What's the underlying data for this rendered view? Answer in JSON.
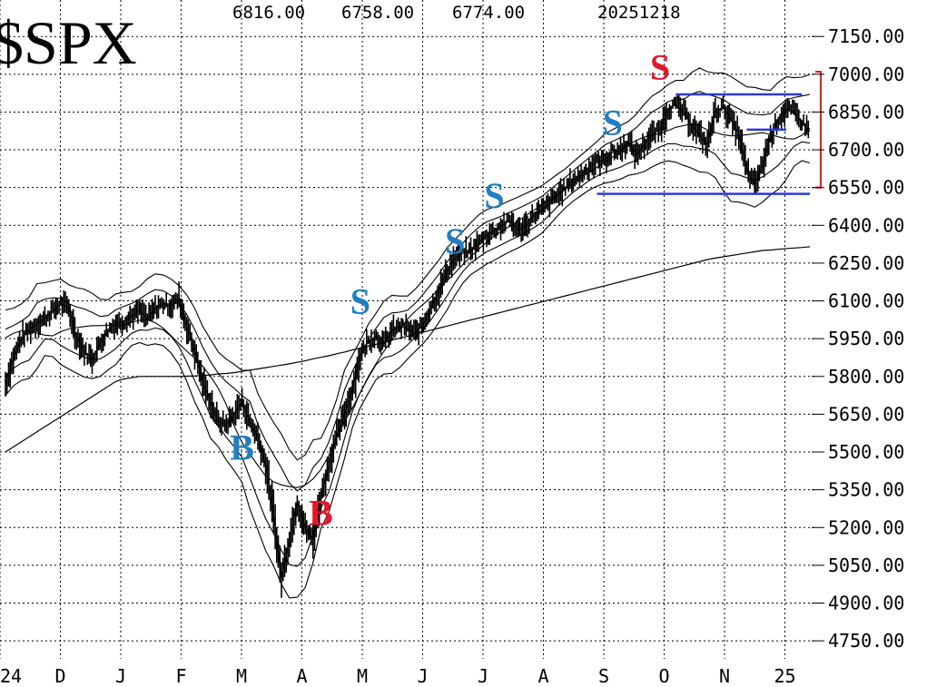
{
  "header": {
    "symbol": "$SPX",
    "high": "6816.00",
    "low": "6758.00",
    "close": "6774.00",
    "date": "20251218"
  },
  "colors": {
    "signal_blue": "#1f7fc0",
    "signal_red": "#e0182b",
    "level_line": "#2b3bd6",
    "bracket": "#d42a2a"
  },
  "chart_data": {
    "type": "line",
    "title": "$SPX",
    "y_tick_labels": [
      "7150.00",
      "7000.00",
      "6850.00",
      "6700.00",
      "6550.00",
      "6400.00",
      "6250.00",
      "6100.00",
      "5950.00",
      "5800.00",
      "5650.00",
      "5500.00",
      "5350.00",
      "5200.00",
      "5050.00",
      "4900.00",
      "4750.00"
    ],
    "ylim": [
      4700,
      7230
    ],
    "x_tick_labels": [
      "24",
      "D",
      "J",
      "F",
      "M",
      "A",
      "M",
      "J",
      "J",
      "A",
      "S",
      "O",
      "N",
      "25"
    ],
    "grid": true,
    "series": [
      {
        "values": [
          5770,
          5870,
          5950,
          5985,
          6010,
          6030,
          6060,
          6090,
          6070,
          5960,
          5900,
          5870,
          5930,
          5985,
          6010,
          6020,
          6040,
          6060,
          6030,
          6070,
          6090,
          6080,
          6110,
          6000,
          5900,
          5780,
          5700,
          5620,
          5610,
          5650,
          5700,
          5620,
          5560,
          5450,
          5250,
          5000,
          5150,
          5300,
          5200,
          5150,
          5320,
          5450,
          5560,
          5650,
          5750,
          5880,
          5940,
          5960,
          5930,
          5980,
          6000,
          5990,
          5970,
          6010,
          6080,
          6140,
          6220,
          6270,
          6290,
          6300,
          6330,
          6360,
          6380,
          6400,
          6420,
          6380,
          6400,
          6440,
          6460,
          6490,
          6520,
          6550,
          6580,
          6600,
          6630,
          6650,
          6660,
          6690,
          6700,
          6730,
          6680,
          6720,
          6760,
          6780,
          6860,
          6880,
          6850,
          6800,
          6760,
          6720,
          6850,
          6870,
          6820,
          6760,
          6620,
          6560,
          6640,
          6750,
          6820,
          6860,
          6850,
          6810,
          6774
        ]
      }
    ],
    "trend_line": [
      5500,
      5520,
      5540,
      5560,
      5580,
      5600,
      5620,
      5640,
      5660,
      5680,
      5700,
      5720,
      5740,
      5760,
      5780,
      5790,
      5795,
      5800,
      5800,
      5800,
      5800,
      5800,
      5800,
      5801,
      5802,
      5804,
      5806,
      5810,
      5812,
      5815,
      5820,
      5825,
      5830,
      5835,
      5840,
      5845,
      5850,
      5856,
      5862,
      5870,
      5876,
      5882,
      5890,
      5897,
      5905,
      5913,
      5920,
      5928,
      5936,
      5944,
      5952,
      5960,
      5968,
      5976,
      5984,
      5992,
      6000,
      6008,
      6016,
      6024,
      6032,
      6040,
      6048,
      6056,
      6064,
      6072,
      6080,
      6088,
      6096,
      6104,
      6112,
      6120,
      6128,
      6136,
      6144,
      6152,
      6160,
      6168,
      6176,
      6184,
      6192,
      6200,
      6208,
      6216,
      6224,
      6232,
      6240,
      6248,
      6256,
      6264,
      6270,
      6275,
      6280,
      6285,
      6290,
      6295,
      6300,
      6302,
      6305,
      6308,
      6310,
      6312,
      6315
    ],
    "signals": [
      {
        "label": "B",
        "color": "blue",
        "index": 30,
        "value": 5470
      },
      {
        "label": "B",
        "color": "red",
        "index": 40,
        "value": 5210
      },
      {
        "label": "S",
        "color": "blue",
        "index": 45,
        "value": 6050
      },
      {
        "label": "S",
        "color": "blue",
        "index": 57,
        "value": 6290
      },
      {
        "label": "S",
        "color": "blue",
        "index": 62,
        "value": 6470
      },
      {
        "label": "S",
        "color": "blue",
        "index": 77,
        "value": 6760
      },
      {
        "label": "S",
        "color": "red",
        "index": 83,
        "value": 6980
      }
    ],
    "levels": [
      {
        "value": 6920,
        "from": 85,
        "to": 101
      },
      {
        "value": 6780,
        "from": 94,
        "to": 99
      },
      {
        "value": 6525,
        "from": 75,
        "to": 102
      }
    ],
    "bracket": [
      6550,
      7010
    ]
  }
}
